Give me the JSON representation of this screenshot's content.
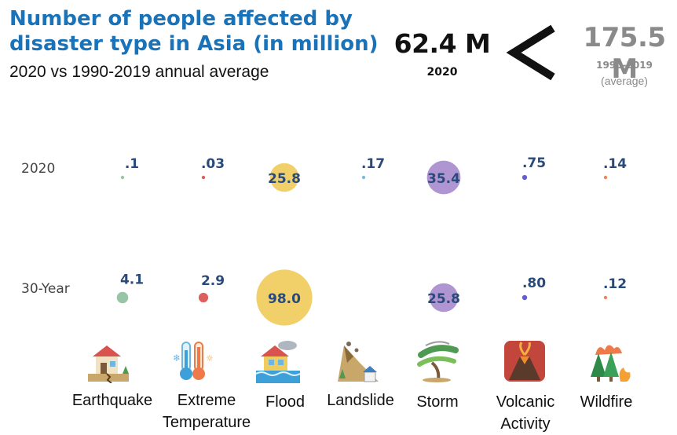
{
  "header": {
    "title_line1": "Number of people affected by",
    "title_line2": "disaster type in Asia (in million)",
    "subtitle": "2020 vs 1990-2019 annual average",
    "total_2020": "62.4 M",
    "total_2020_label": "2020",
    "comparison_symbol": "<",
    "total_avg": "175.5 M",
    "total_avg_label": "1990-2019",
    "total_avg_sublabel": "(average)"
  },
  "chart_data": {
    "type": "scatter",
    "title": "Number of people affected by disaster type in Asia (in million)",
    "subtitle": "2020 vs 1990-2019 annual average",
    "categories": [
      "Earthquake",
      "Extreme Temperature",
      "Flood",
      "Landslide",
      "Storm",
      "Volcanic Activity",
      "Wildfire"
    ],
    "rows": [
      "2020",
      "30-Year"
    ],
    "series": [
      {
        "name": "2020",
        "values": [
          0.1,
          0.03,
          25.8,
          0.17,
          35.4,
          0.75,
          0.14
        ],
        "labels": [
          ".1",
          ".03",
          "25.8",
          ".17",
          "35.4",
          ".75",
          ".14"
        ]
      },
      {
        "name": "30-Year",
        "values": [
          4.1,
          2.9,
          98.0,
          null,
          25.8,
          0.8,
          0.12
        ],
        "labels": [
          "4.1",
          "2.9",
          "98.0",
          "",
          "25.8",
          ".80",
          ".12"
        ]
      }
    ],
    "colors": [
      "#8fbf9f",
      "#d9534f",
      "#f0cc5c",
      "#6fb5de",
      "#a98ccf",
      "#5a4fcf",
      "#ee7a4a"
    ],
    "label_color": "#2a4a7a",
    "legend": "none",
    "grid": false
  },
  "icons": [
    "earthquake-icon",
    "extreme-temperature-icon",
    "flood-icon",
    "landslide-icon",
    "storm-icon",
    "volcanic-activity-icon",
    "wildfire-icon"
  ],
  "category_labels": [
    [
      "Earthquake"
    ],
    [
      "Extreme",
      "Temperature"
    ],
    [
      "Flood"
    ],
    [
      "Landslide"
    ],
    [
      "Storm"
    ],
    [
      "Volcanic",
      "Activity"
    ],
    [
      "Wildfire"
    ]
  ]
}
